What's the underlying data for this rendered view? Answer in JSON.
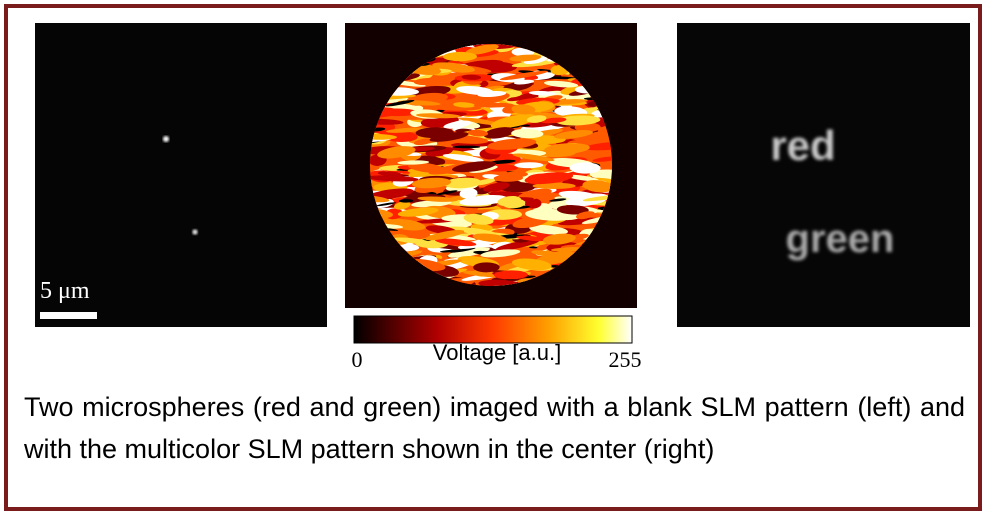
{
  "figure": {
    "scale_bar": "5 μm",
    "right_image_words": [
      "red",
      "green"
    ],
    "colorbar": {
      "min": 0,
      "max": 255,
      "label": "Voltage [a.u.]"
    },
    "caption": "Two microspheres (red and green) imaged with a blank SLM pattern (left) and with the multicolor SLM pattern shown in the center (right)"
  }
}
